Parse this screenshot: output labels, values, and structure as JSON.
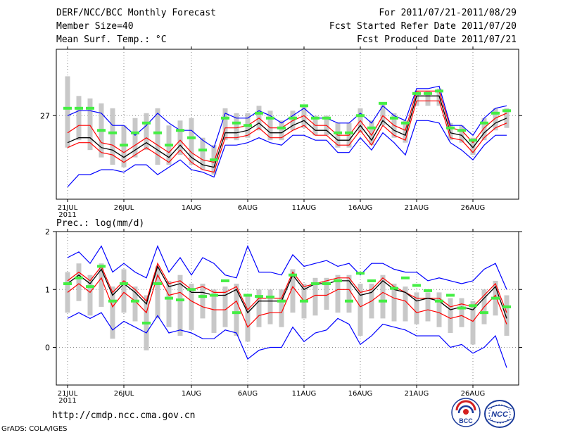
{
  "header": {
    "title": "DERF/NCC/BCC Monthly Forecast",
    "member_size": "Member Size=40",
    "variable": "Mean Surf. Temp.: °C",
    "period": "For 2011/07/21-2011/08/29",
    "fcst_started": "Fcst Started Refer Date 2011/07/20",
    "fcst_produced": "Fcst Produced Date 2011/07/21"
  },
  "footer": {
    "url": "http://cmdp.ncc.cma.gov.cn",
    "grads": "GrADS: COLA/IGES",
    "logo_bcc": "BCC",
    "logo_ncc": "NCC"
  },
  "colors": {
    "spread_blue": "#0000ff",
    "band_red": "#ff0000",
    "mean_black": "#000000",
    "obs_green": "#44ee44",
    "box_gray": "#c8c8c8",
    "grid": "#888888"
  },
  "chart_data": [
    {
      "type": "line",
      "title": "Mean Surf. Temp.: °C",
      "x_tick_labels": [
        "21JUL",
        "26JUL",
        "1AUG",
        "6AUG",
        "11AUG",
        "16AUG",
        "21AUG",
        "26AUG"
      ],
      "x_year_label": "2011",
      "y_tick_labels": [
        "27"
      ],
      "x_range": [
        0,
        39
      ],
      "ylim": [
        25.3,
        28.35
      ],
      "y_ticks": [
        27
      ],
      "series": [
        {
          "name": "max",
          "values": [
            27.0,
            27.1,
            27.1,
            27.05,
            26.8,
            26.8,
            26.6,
            26.8,
            27.05,
            26.85,
            26.7,
            26.7,
            26.5,
            26.35,
            27.05,
            26.95,
            26.95,
            27.1,
            27.0,
            26.85,
            27.0,
            27.15,
            26.95,
            26.95,
            26.85,
            26.85,
            27.05,
            26.85,
            27.2,
            27.0,
            26.9,
            27.55,
            27.55,
            27.6,
            26.8,
            26.8,
            26.6,
            26.95,
            27.15,
            27.2
          ]
        },
        {
          "name": "upper",
          "values": [
            26.65,
            26.8,
            26.8,
            26.45,
            26.4,
            26.25,
            26.4,
            26.55,
            26.4,
            26.25,
            26.5,
            26.25,
            26.1,
            26.05,
            26.75,
            26.75,
            26.8,
            26.95,
            26.75,
            26.75,
            26.9,
            27.0,
            26.8,
            26.8,
            26.6,
            26.6,
            26.9,
            26.6,
            27.0,
            26.8,
            26.7,
            27.5,
            27.5,
            27.5,
            26.75,
            26.7,
            26.45,
            26.75,
            26.95,
            27.05
          ]
        },
        {
          "name": "mean",
          "values": [
            26.45,
            26.55,
            26.55,
            26.35,
            26.3,
            26.15,
            26.3,
            26.45,
            26.3,
            26.15,
            26.4,
            26.15,
            26.0,
            25.95,
            26.65,
            26.65,
            26.7,
            26.85,
            26.65,
            26.65,
            26.8,
            26.9,
            26.7,
            26.7,
            26.5,
            26.5,
            26.8,
            26.5,
            26.9,
            26.7,
            26.6,
            27.4,
            27.4,
            27.4,
            26.65,
            26.6,
            26.35,
            26.65,
            26.85,
            26.95
          ]
        },
        {
          "name": "lower",
          "values": [
            26.35,
            26.45,
            26.45,
            26.25,
            26.2,
            26.05,
            26.2,
            26.35,
            26.2,
            26.05,
            26.3,
            26.05,
            25.9,
            25.85,
            26.55,
            26.55,
            26.6,
            26.75,
            26.55,
            26.55,
            26.7,
            26.8,
            26.6,
            26.6,
            26.4,
            26.4,
            26.7,
            26.4,
            26.8,
            26.6,
            26.5,
            27.3,
            27.3,
            27.3,
            26.55,
            26.5,
            26.25,
            26.55,
            26.75,
            26.85
          ]
        },
        {
          "name": "min",
          "values": [
            25.55,
            25.8,
            25.8,
            25.9,
            25.9,
            25.85,
            26.0,
            26.0,
            25.8,
            25.95,
            26.1,
            25.9,
            25.85,
            25.75,
            26.4,
            26.4,
            26.45,
            26.55,
            26.45,
            26.4,
            26.6,
            26.6,
            26.5,
            26.5,
            26.25,
            26.25,
            26.55,
            26.3,
            26.65,
            26.45,
            26.2,
            26.9,
            26.9,
            26.85,
            26.45,
            26.3,
            26.1,
            26.4,
            26.6,
            26.6
          ]
        },
        {
          "name": "observed",
          "values": [
            27.15,
            27.15,
            27.15,
            26.7,
            26.65,
            26.4,
            26.65,
            26.85,
            26.65,
            26.4,
            26.7,
            26.55,
            26.3,
            26.1,
            26.95,
            26.85,
            26.8,
            27.05,
            26.95,
            26.75,
            26.95,
            27.2,
            26.95,
            26.95,
            26.65,
            26.65,
            27.0,
            26.75,
            27.25,
            26.95,
            26.85,
            27.45,
            27.45,
            27.5,
            26.75,
            26.7,
            26.5,
            26.85,
            27.05,
            27.1
          ]
        }
      ],
      "boxes": {
        "upper": [
          27.8,
          27.4,
          27.35,
          27.25,
          27.15,
          26.8,
          26.95,
          27.05,
          27.15,
          26.8,
          26.9,
          26.95,
          26.55,
          26.4,
          27.15,
          27.05,
          27.05,
          27.2,
          27.1,
          26.9,
          27.1,
          27.2,
          27.0,
          27.0,
          26.85,
          26.85,
          27.15,
          26.9,
          27.25,
          27.05,
          26.9,
          27.5,
          27.5,
          27.55,
          26.85,
          26.8,
          26.55,
          26.95,
          27.15,
          27.15
        ],
        "lower": [
          26.35,
          26.5,
          26.3,
          26.15,
          26.0,
          25.95,
          26.15,
          26.3,
          26.0,
          26.0,
          26.2,
          26.0,
          25.9,
          25.8,
          26.5,
          26.5,
          26.55,
          26.7,
          26.5,
          26.5,
          26.7,
          26.75,
          26.6,
          26.6,
          26.35,
          26.35,
          26.65,
          26.4,
          26.8,
          26.55,
          26.45,
          27.2,
          27.2,
          27.2,
          26.5,
          26.45,
          26.2,
          26.5,
          26.7,
          26.75
        ]
      }
    },
    {
      "type": "line",
      "title": "Prec.: log(mm/d)",
      "x_tick_labels": [
        "21JUL",
        "26JUL",
        "1AUG",
        "6AUG",
        "11AUG",
        "16AUG",
        "21AUG",
        "26AUG"
      ],
      "x_year_label": "2011",
      "y_tick_labels": [
        "0",
        "1",
        "2"
      ],
      "x_range": [
        0,
        39
      ],
      "ylim": [
        -0.65,
        2.0
      ],
      "y_ticks": [
        0,
        1,
        2
      ],
      "series": [
        {
          "name": "max",
          "values": [
            1.55,
            1.65,
            1.45,
            1.75,
            1.3,
            1.45,
            1.3,
            1.2,
            1.75,
            1.3,
            1.55,
            1.25,
            1.55,
            1.45,
            1.25,
            1.2,
            1.75,
            1.3,
            1.3,
            1.25,
            1.6,
            1.4,
            1.45,
            1.5,
            1.4,
            1.45,
            1.25,
            1.45,
            1.45,
            1.35,
            1.3,
            1.3,
            1.15,
            1.2,
            1.15,
            1.1,
            1.15,
            1.35,
            1.45,
            1.0
          ]
        },
        {
          "name": "upper",
          "values": [
            1.15,
            1.3,
            1.15,
            1.4,
            0.95,
            1.15,
            1.0,
            0.8,
            1.45,
            1.1,
            1.15,
            1.0,
            1.05,
            0.95,
            0.95,
            1.05,
            0.65,
            0.85,
            0.85,
            0.85,
            1.3,
            1.05,
            1.1,
            1.15,
            1.2,
            1.2,
            0.95,
            1.0,
            1.2,
            1.05,
            0.95,
            0.85,
            0.85,
            0.85,
            0.7,
            0.75,
            0.7,
            0.9,
            1.1,
            0.6
          ]
        },
        {
          "name": "mean",
          "values": [
            1.1,
            1.25,
            1.1,
            1.35,
            0.9,
            1.1,
            0.95,
            0.75,
            1.4,
            1.05,
            1.1,
            0.95,
            0.95,
            0.9,
            0.9,
            1.0,
            0.6,
            0.8,
            0.8,
            0.8,
            1.25,
            1.0,
            1.1,
            1.1,
            1.15,
            1.15,
            0.9,
            0.95,
            1.15,
            1.0,
            0.95,
            0.8,
            0.85,
            0.8,
            0.65,
            0.7,
            0.65,
            0.85,
            1.05,
            0.5
          ]
        },
        {
          "name": "lower",
          "values": [
            0.95,
            1.1,
            0.95,
            1.2,
            0.7,
            0.95,
            0.8,
            0.6,
            1.25,
            0.9,
            0.95,
            0.8,
            0.7,
            0.65,
            0.65,
            0.8,
            0.35,
            0.55,
            0.6,
            0.6,
            1.05,
            0.8,
            0.9,
            0.9,
            1.0,
            1.0,
            0.7,
            0.8,
            0.95,
            0.85,
            0.8,
            0.6,
            0.65,
            0.6,
            0.5,
            0.55,
            0.45,
            0.7,
            0.9,
            0.4
          ]
        },
        {
          "name": "min",
          "values": [
            0.5,
            0.6,
            0.5,
            0.6,
            0.3,
            0.45,
            0.35,
            0.25,
            0.55,
            0.25,
            0.3,
            0.25,
            0.15,
            0.15,
            0.3,
            0.25,
            -0.2,
            -0.05,
            0.0,
            0.0,
            0.35,
            0.1,
            0.25,
            0.3,
            0.5,
            0.4,
            0.05,
            0.2,
            0.4,
            0.35,
            0.3,
            0.2,
            0.2,
            0.2,
            0.0,
            0.05,
            -0.1,
            0.0,
            0.2,
            -0.35
          ]
        },
        {
          "name": "observed",
          "values": [
            1.1,
            1.2,
            1.05,
            1.4,
            0.8,
            1.1,
            0.8,
            0.42,
            1.1,
            0.85,
            0.82,
            1.0,
            0.88,
            0.9,
            1.15,
            0.6,
            0.9,
            0.88,
            0.87,
            0.8,
            1.25,
            0.8,
            1.1,
            1.1,
            1.15,
            0.8,
            1.28,
            1.15,
            0.8,
            1.02,
            1.2,
            1.07,
            0.98,
            0.8,
            0.9,
            0.68,
            0.72,
            0.6,
            0.85,
            0.7
          ]
        }
      ],
      "boxes": {
        "upper": [
          1.3,
          1.45,
          1.25,
          1.45,
          1.05,
          1.35,
          1.05,
          0.9,
          1.4,
          1.15,
          1.25,
          1.1,
          1.1,
          1.0,
          1.05,
          1.1,
          0.9,
          1.0,
          1.0,
          1.0,
          1.35,
          1.1,
          1.2,
          1.2,
          1.25,
          1.25,
          1.1,
          1.1,
          1.25,
          1.1,
          1.05,
          0.95,
          0.95,
          0.95,
          0.85,
          0.85,
          0.8,
          1.0,
          1.15,
          0.9
        ],
        "lower": [
          0.6,
          0.8,
          0.55,
          0.7,
          0.15,
          0.6,
          0.45,
          -0.05,
          0.5,
          0.35,
          0.2,
          0.3,
          0.5,
          0.25,
          0.35,
          0.2,
          0.1,
          0.35,
          0.4,
          0.35,
          0.6,
          0.5,
          0.55,
          0.65,
          0.6,
          0.6,
          0.2,
          0.5,
          0.5,
          0.45,
          0.45,
          0.4,
          0.45,
          0.35,
          0.25,
          0.35,
          0.05,
          0.4,
          0.55,
          0.2
        ]
      }
    }
  ]
}
